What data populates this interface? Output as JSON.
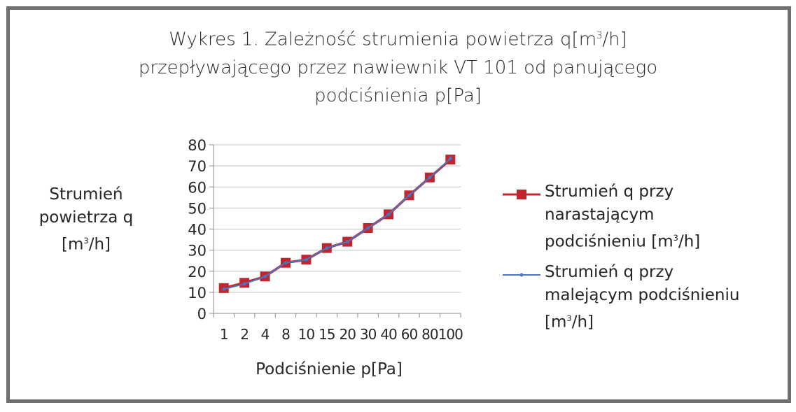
{
  "chart_data": {
    "type": "line",
    "title_main": "Wykres 1. Zależność strumienia powietrza q[m",
    "title_sup": "3",
    "title_end": "/h]",
    "title_line2": "przepływającego przez nawiewnik VT 101 od panującego",
    "title_line3": "podciśnienia p[Pa]",
    "ylabel_line1": "Strumień",
    "ylabel_line2": "powietrza q",
    "ylabel_pre": "[m",
    "ylabel_sup": "3",
    "ylabel_post": "/h]",
    "xlabel": "Podciśnienie p[Pa]",
    "categories": [
      "1",
      "2",
      "4",
      "8",
      "10",
      "15",
      "20",
      "30",
      "40",
      "60",
      "80",
      "100"
    ],
    "ylim": [
      0,
      80
    ],
    "yticks": [
      0,
      10,
      20,
      30,
      40,
      50,
      60,
      70,
      80
    ],
    "grid": true,
    "legend_position": "right",
    "series": [
      {
        "name_line1": "Strumień q przy",
        "name_line2": "narastającym",
        "name_line3_pre": "podciśnieniu [m",
        "name_line3_sup": "3",
        "name_line3_post": "/h]",
        "color": "#c0262d",
        "marker": "square",
        "values": [
          12,
          14.5,
          17.5,
          24,
          25.5,
          31,
          34,
          40.5,
          47,
          56,
          64.5,
          73
        ]
      },
      {
        "name_line1": "Strumień q przy",
        "name_line2": "malejącym podciśnieniu",
        "name_line3_pre": "[m",
        "name_line3_sup": "3",
        "name_line3_post": "/h]",
        "color": "#4a74c4",
        "marker": "dot",
        "values": [
          11.5,
          14,
          17.5,
          24,
          25.5,
          31,
          34,
          40.5,
          47,
          56,
          64.5,
          73.5
        ]
      }
    ]
  }
}
